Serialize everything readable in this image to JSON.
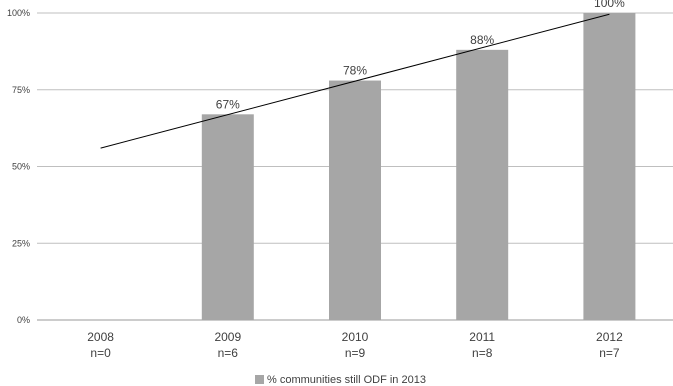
{
  "chart_data": {
    "type": "bar",
    "categories": [
      "2008",
      "2009",
      "2010",
      "2011",
      "2012"
    ],
    "category_sublabels": [
      "n=0",
      "n=6",
      "n=9",
      "n=8",
      "n=7"
    ],
    "series": [
      {
        "name": "% communities still ODF in 2013",
        "values": [
          null,
          67,
          78,
          88,
          100
        ],
        "data_labels": [
          "",
          "67%",
          "78%",
          "88%",
          "100%"
        ],
        "color": "#a6a6a6"
      }
    ],
    "trendline": {
      "type": "linear",
      "color": "#000000"
    },
    "y_ticks": [
      "0%",
      "25%",
      "50%",
      "75%",
      "100%"
    ],
    "ylim": [
      0,
      100
    ],
    "grid": true,
    "legend_position": "bottom",
    "gridline_color": "#bfbfbf"
  }
}
